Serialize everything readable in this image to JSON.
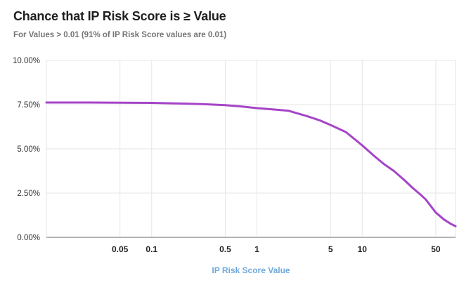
{
  "chart_data": {
    "type": "line",
    "title": "Chance that IP Risk Score is ≥ Value",
    "subtitle": "For Values > 0.01 (91% of IP Risk Score values are 0.01)",
    "xlabel": "IP Risk Score Value",
    "ylabel": "",
    "x_scale": "log",
    "x_range": [
      0.01,
      77
    ],
    "y_range": [
      0,
      10
    ],
    "grid": true,
    "legend": "none",
    "x_ticks": [
      {
        "value": 0.05,
        "label": "0.05"
      },
      {
        "value": 0.1,
        "label": "0.1"
      },
      {
        "value": 0.5,
        "label": "0.5"
      },
      {
        "value": 1,
        "label": "1"
      },
      {
        "value": 5,
        "label": "5"
      },
      {
        "value": 10,
        "label": "10"
      },
      {
        "value": 50,
        "label": "50"
      }
    ],
    "y_ticks": [
      {
        "value": 0,
        "label": "0.00%"
      },
      {
        "value": 2.5,
        "label": "2.50%"
      },
      {
        "value": 5,
        "label": "5.00%"
      },
      {
        "value": 7.5,
        "label": "7.50%"
      },
      {
        "value": 10,
        "label": "10.00%"
      }
    ],
    "series": [
      {
        "name": "Chance that IP Risk Score is ≥ Value",
        "color": "#a545c8",
        "points": [
          [
            0.01,
            7.62
          ],
          [
            0.02,
            7.62
          ],
          [
            0.05,
            7.61
          ],
          [
            0.1,
            7.6
          ],
          [
            0.2,
            7.56
          ],
          [
            0.3,
            7.53
          ],
          [
            0.5,
            7.47
          ],
          [
            0.7,
            7.4
          ],
          [
            1,
            7.3
          ],
          [
            1.5,
            7.22
          ],
          [
            2,
            7.15
          ],
          [
            3,
            6.85
          ],
          [
            4,
            6.6
          ],
          [
            5,
            6.35
          ],
          [
            7,
            5.95
          ],
          [
            10,
            5.2
          ],
          [
            13,
            4.6
          ],
          [
            16,
            4.15
          ],
          [
            20,
            3.75
          ],
          [
            25,
            3.25
          ],
          [
            30,
            2.8
          ],
          [
            36,
            2.4
          ],
          [
            40,
            2.15
          ],
          [
            50,
            1.4
          ],
          [
            60,
            1.0
          ],
          [
            70,
            0.75
          ],
          [
            77,
            0.63
          ]
        ]
      }
    ],
    "colors": {
      "line": "#a545c8",
      "grid": "#e6e6e6",
      "axis_line": "#b3b3b3",
      "x_tick_label": "#212121",
      "y_tick_label": "#333333",
      "axis_title": "#6fa8dc",
      "title": "#1f1f1f",
      "subtitle": "#757575"
    }
  }
}
